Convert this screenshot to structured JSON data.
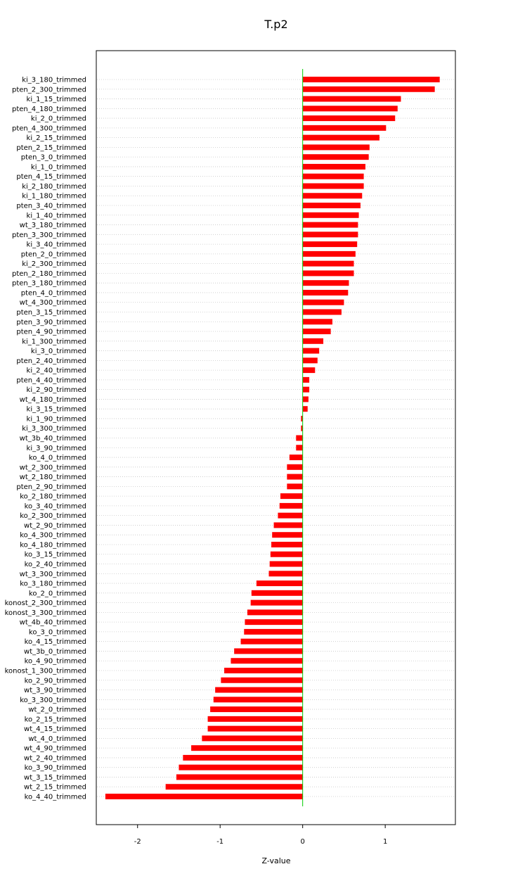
{
  "chart_data": {
    "type": "bar",
    "orientation": "horizontal",
    "title": "T.p2",
    "xlabel": "Z-value",
    "ylabel": "",
    "xlim": [
      -2.5,
      1.85
    ],
    "x_ticks": [
      -2,
      -1,
      0,
      1
    ],
    "grid": "horizontal dotted",
    "bar_color": "#ff0000",
    "zero_line_color": "#00cc00",
    "categories": [
      "ki_3_180_trimmed",
      "pten_2_300_trimmed",
      "ki_1_15_trimmed",
      "pten_4_180_trimmed",
      "ki_2_0_trimmed",
      "pten_4_300_trimmed",
      "ki_2_15_trimmed",
      "pten_2_15_trimmed",
      "pten_3_0_trimmed",
      "ki_1_0_trimmed",
      "pten_4_15_trimmed",
      "ki_2_180_trimmed",
      "ki_1_180_trimmed",
      "pten_3_40_trimmed",
      "ki_1_40_trimmed",
      "wt_3_180_trimmed",
      "pten_3_300_trimmed",
      "ki_3_40_trimmed",
      "pten_2_0_trimmed",
      "ki_2_300_trimmed",
      "pten_2_180_trimmed",
      "pten_3_180_trimmed",
      "pten_4_0_trimmed",
      "wt_4_300_trimmed",
      "pten_3_15_trimmed",
      "pten_3_90_trimmed",
      "pten_4_90_trimmed",
      "ki_1_300_trimmed",
      "ki_3_0_trimmed",
      "pten_2_40_trimmed",
      "ki_2_40_trimmed",
      "pten_4_40_trimmed",
      "ki_2_90_trimmed",
      "wt_4_180_trimmed",
      "ki_3_15_trimmed",
      "ki_1_90_trimmed",
      "ki_3_300_trimmed",
      "wt_3b_40_trimmed",
      "ki_3_90_trimmed",
      "ko_4_0_trimmed",
      "wt_2_300_trimmed",
      "wt_2_180_trimmed",
      "pten_2_90_trimmed",
      "ko_2_180_trimmed",
      "ko_3_40_trimmed",
      "ko_2_300_trimmed",
      "wt_2_90_trimmed",
      "ko_4_300_trimmed",
      "ko_4_180_trimmed",
      "ko_3_15_trimmed",
      "ko_2_40_trimmed",
      "wt_3_300_trimmed",
      "ko_3_180_trimmed",
      "ko_2_0_trimmed",
      "konost_2_300_trimmed",
      "konost_3_300_trimmed",
      "wt_4b_40_trimmed",
      "ko_3_0_trimmed",
      "ko_4_15_trimmed",
      "wt_3b_0_trimmed",
      "ko_4_90_trimmed",
      "konost_1_300_trimmed",
      "ko_2_90_trimmed",
      "wt_3_90_trimmed",
      "ko_3_300_trimmed",
      "wt_2_0_trimmed",
      "ko_2_15_trimmed",
      "wt_4_15_trimmed",
      "wt_4_0_trimmed",
      "wt_4_90_trimmed",
      "wt_2_40_trimmed",
      "ko_3_90_trimmed",
      "wt_3_15_trimmed",
      "wt_2_15_trimmed",
      "ko_4_40_trimmed"
    ],
    "values": [
      1.66,
      1.6,
      1.19,
      1.15,
      1.12,
      1.01,
      0.93,
      0.81,
      0.8,
      0.76,
      0.74,
      0.74,
      0.72,
      0.7,
      0.68,
      0.67,
      0.67,
      0.66,
      0.64,
      0.62,
      0.62,
      0.56,
      0.55,
      0.5,
      0.47,
      0.36,
      0.34,
      0.25,
      0.2,
      0.18,
      0.15,
      0.08,
      0.08,
      0.07,
      0.06,
      -0.02,
      -0.02,
      -0.08,
      -0.08,
      -0.16,
      -0.19,
      -0.19,
      -0.19,
      -0.27,
      -0.28,
      -0.3,
      -0.35,
      -0.37,
      -0.38,
      -0.39,
      -0.4,
      -0.41,
      -0.56,
      -0.62,
      -0.63,
      -0.67,
      -0.7,
      -0.71,
      -0.75,
      -0.83,
      -0.87,
      -0.95,
      -0.99,
      -1.06,
      -1.08,
      -1.12,
      -1.15,
      -1.15,
      -1.22,
      -1.35,
      -1.45,
      -1.5,
      -1.53,
      -1.66,
      -2.39
    ]
  }
}
